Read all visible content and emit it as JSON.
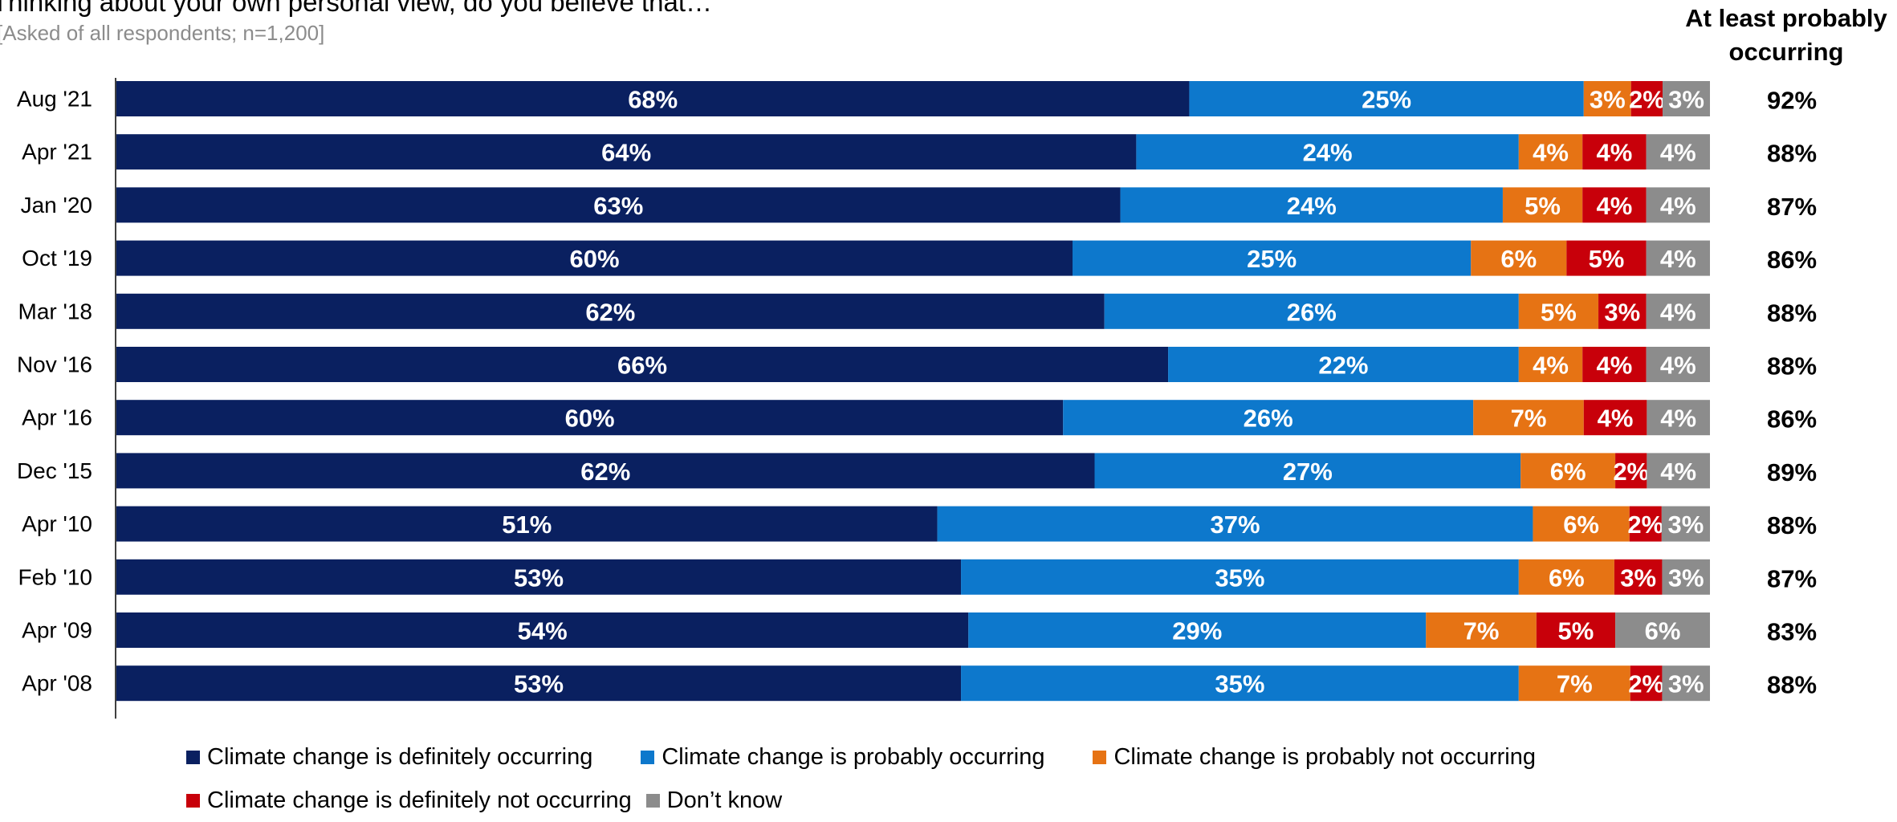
{
  "header": {
    "question": "Thinking about your own personal view, do you believe that…",
    "subtitle": "[Asked of all respondents; n=1,200]",
    "total_header_line1": "At least probably",
    "total_header_line2": "occurring"
  },
  "colors": {
    "definitely": "#0a2060",
    "probably": "#0d78cc",
    "probably_not": "#e67314",
    "definitely_not": "#c8000a",
    "dont_know": "#8c8c8c"
  },
  "chart_data": {
    "type": "bar",
    "orientation": "horizontal",
    "stacked": true,
    "normalized": true,
    "categories": [
      "Aug '21",
      "Apr '21",
      "Jan '20",
      "Oct '19",
      "Mar '18",
      "Nov '16",
      "Apr '16",
      "Dec '15",
      "Apr '10",
      "Feb '10",
      "Apr '09",
      "Apr '08"
    ],
    "series": [
      {
        "name": "Climate change is definitely occurring",
        "color_key": "definitely",
        "values": [
          68,
          64,
          63,
          60,
          62,
          66,
          60,
          62,
          51,
          53,
          54,
          53
        ]
      },
      {
        "name": "Climate change is probably occurring",
        "color_key": "probably",
        "values": [
          25,
          24,
          24,
          25,
          26,
          22,
          26,
          27,
          37,
          35,
          29,
          35
        ]
      },
      {
        "name": "Climate change is probably not occurring",
        "color_key": "probably_not",
        "values": [
          3,
          4,
          5,
          6,
          5,
          4,
          7,
          6,
          6,
          6,
          7,
          7
        ]
      },
      {
        "name": "Climate change is definitely not occurring",
        "color_key": "definitely_not",
        "values": [
          2,
          4,
          4,
          5,
          3,
          4,
          4,
          2,
          2,
          3,
          5,
          2
        ]
      },
      {
        "name": "Don’t know",
        "color_key": "dont_know",
        "values": [
          3,
          4,
          4,
          4,
          4,
          4,
          4,
          4,
          3,
          3,
          6,
          3
        ]
      }
    ],
    "value_suffix": "%",
    "totals": {
      "values": [
        92,
        88,
        87,
        86,
        88,
        88,
        86,
        89,
        88,
        87,
        83,
        88
      ]
    },
    "legend_position": "bottom",
    "grid": false
  }
}
